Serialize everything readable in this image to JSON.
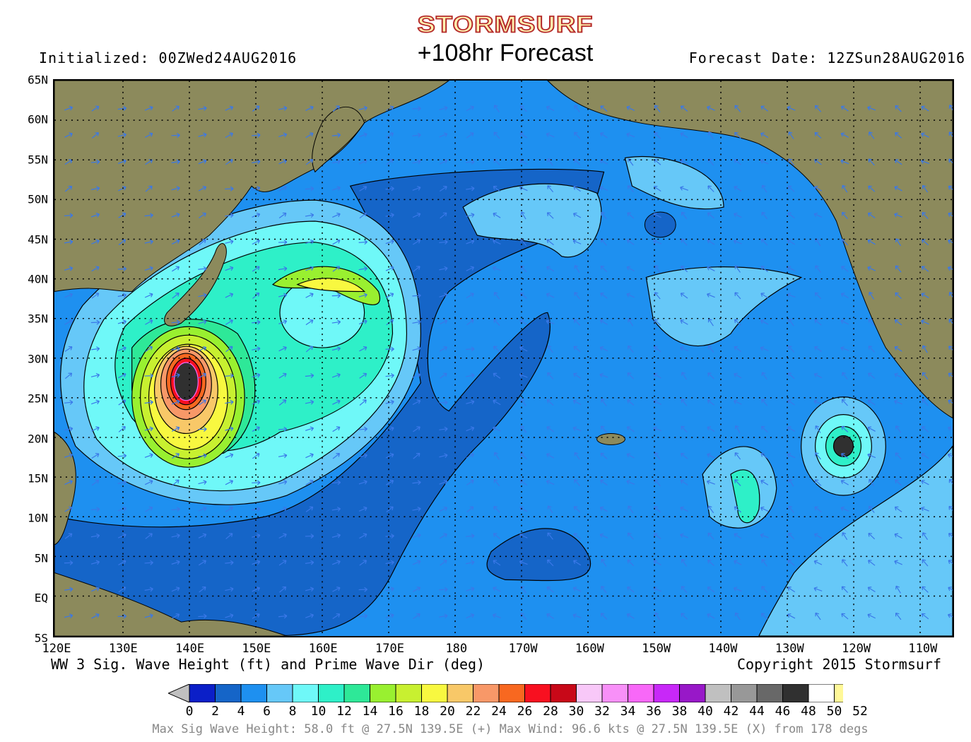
{
  "header": {
    "logo": "STORMSURF",
    "title": "+108hr Forecast",
    "initialized": "Initialized: 00ZWed24AUG2016",
    "forecast_date": "Forecast Date: 12ZSun28AUG2016"
  },
  "map": {
    "lat_labels": [
      "65N",
      "60N",
      "55N",
      "50N",
      "45N",
      "40N",
      "35N",
      "30N",
      "25N",
      "20N",
      "15N",
      "10N",
      "5N",
      "EQ",
      "5S"
    ],
    "lon_labels": [
      "120E",
      "130E",
      "140E",
      "150E",
      "160E",
      "170E",
      "180",
      "170W",
      "160W",
      "150W",
      "140W",
      "130W",
      "120W",
      "110W"
    ],
    "variable_label": "WW 3 Sig. Wave Height (ft) and Prime Wave Dir (deg)",
    "copyright": "Copyright 2015 Stormsurf",
    "land_color": "#8c8a5c",
    "contour_color": "#000000"
  },
  "colorbar": {
    "labels": [
      "0",
      "2",
      "4",
      "6",
      "8",
      "10",
      "12",
      "14",
      "16",
      "18",
      "20",
      "22",
      "24",
      "26",
      "28",
      "30",
      "32",
      "34",
      "36",
      "38",
      "40",
      "42",
      "44",
      "46",
      "48",
      "50",
      "52"
    ],
    "colors": [
      "#0b1fc8",
      "#1565c8",
      "#1e90f0",
      "#66c8f8",
      "#6ff8f8",
      "#2ef0c8",
      "#2ee898",
      "#99f030",
      "#c8f030",
      "#f8f840",
      "#f8c868",
      "#f89868",
      "#f86820",
      "#f81020",
      "#c80818",
      "#f8c8f8",
      "#f890f8",
      "#f868f8",
      "#c828f8",
      "#9818c8",
      "#c0c0c0",
      "#989898",
      "#686868",
      "#303030",
      "#ffffff",
      "#fff898"
    ],
    "under_color": "#c0c0c0",
    "over_color": "#f8c030"
  },
  "footer": {
    "max_info": "Max Sig Wave Height: 58.0 ft @ 27.5N 139.5E (+)  Max Wind: 96.6 kts @ 27.5N 139.5E (X) from 178 degs"
  }
}
